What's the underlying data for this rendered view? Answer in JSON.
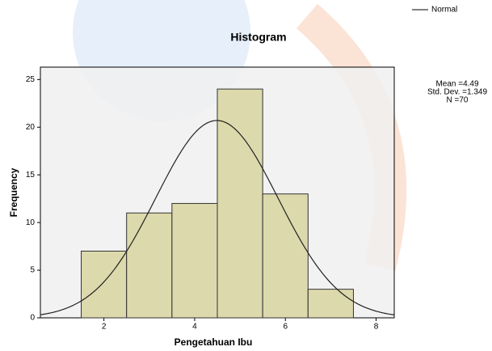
{
  "chart_data": {
    "type": "histogram",
    "title": "Histogram",
    "x_label": "Pengetahuan Ibu",
    "y_label": "Frequency",
    "bins": [
      1.5,
      2.5,
      3.5,
      4.5,
      5.5,
      6.5,
      7.5
    ],
    "counts": [
      7,
      11,
      12,
      24,
      13,
      3
    ],
    "color": "#d9d6a4",
    "xlim": [
      0.6,
      8.4
    ],
    "ylim": [
      0,
      26.3
    ],
    "xticks": [
      2,
      4,
      6,
      8
    ],
    "yticks": [
      0,
      5,
      10,
      15,
      20,
      25
    ],
    "curve_name": "Normal",
    "stats": {
      "mean": {
        "value": 4.49,
        "label": "Mean =4.49"
      },
      "std": {
        "value": 1.349,
        "label": "Std. Dev. =1.349"
      },
      "n": {
        "value": 70,
        "label": "N =70"
      }
    }
  }
}
